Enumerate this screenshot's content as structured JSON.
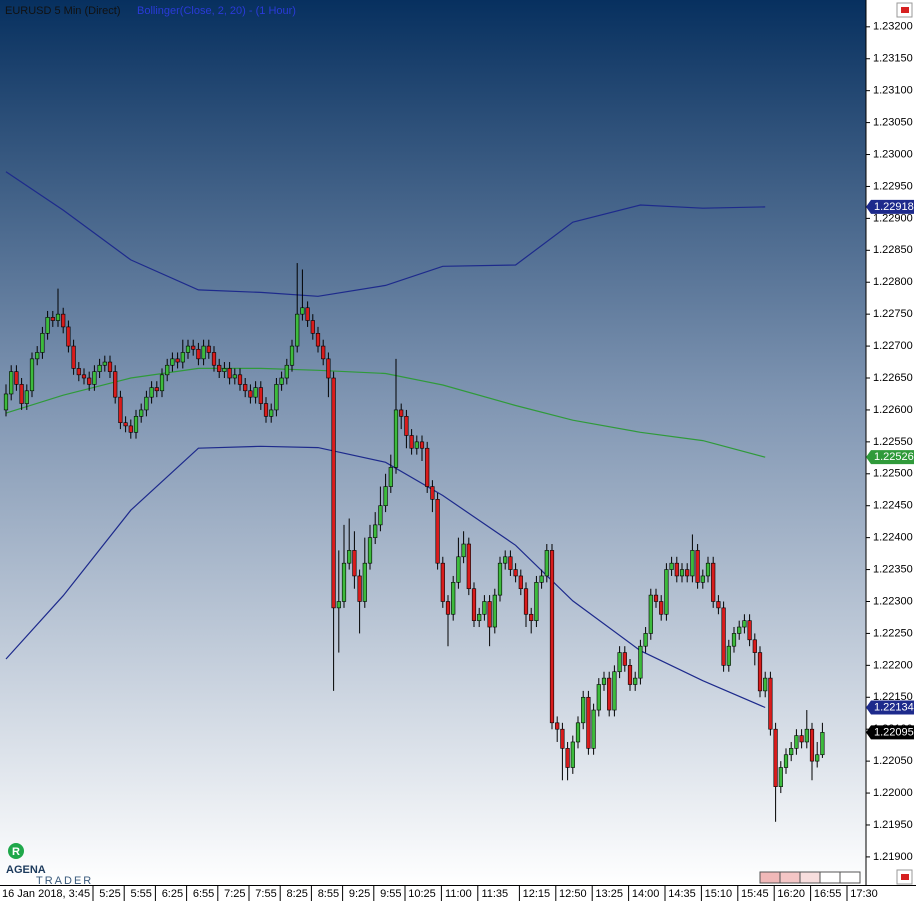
{
  "chart_data": {
    "type": "candlestick",
    "title": "EURUSD 5 Min (Direct)",
    "indicator": "Bollinger(Close, 2, 20) - (1 Hour)",
    "logo_badge": "R",
    "logo": "AGENA",
    "logo_sub": "TRADER",
    "up_color": "#3dbb3d",
    "down_color": "#d91c1c",
    "last_price_color": "#000000",
    "ylim": [
      1.21856,
      1.23242
    ],
    "yticks": [
      {
        "value": 1.232,
        "label": "1.23200"
      },
      {
        "value": 1.2315,
        "label": "1.23150"
      },
      {
        "value": 1.231,
        "label": "1.23100"
      },
      {
        "value": 1.2305,
        "label": "1.23050"
      },
      {
        "value": 1.23,
        "label": "1.23000"
      },
      {
        "value": 1.2295,
        "label": "1.22950"
      },
      {
        "value": 1.229,
        "label": "1.22900"
      },
      {
        "value": 1.2285,
        "label": "1.22850"
      },
      {
        "value": 1.228,
        "label": "1.22800"
      },
      {
        "value": 1.2275,
        "label": "1.22750"
      },
      {
        "value": 1.227,
        "label": "1.22700"
      },
      {
        "value": 1.2265,
        "label": "1.22650"
      },
      {
        "value": 1.226,
        "label": "1.22600"
      },
      {
        "value": 1.2255,
        "label": "1.22550"
      },
      {
        "value": 1.225,
        "label": "1.22500"
      },
      {
        "value": 1.2245,
        "label": "1.22450"
      },
      {
        "value": 1.224,
        "label": "1.22400"
      },
      {
        "value": 1.2235,
        "label": "1.22350"
      },
      {
        "value": 1.223,
        "label": "1.22300"
      },
      {
        "value": 1.2225,
        "label": "1.22250"
      },
      {
        "value": 1.222,
        "label": "1.22200"
      },
      {
        "value": 1.2215,
        "label": "1.22150"
      },
      {
        "value": 1.221,
        "label": "1.22100"
      },
      {
        "value": 1.2205,
        "label": "1.22050"
      },
      {
        "value": 1.22,
        "label": "1.22000"
      },
      {
        "value": 1.2195,
        "label": "1.21950"
      },
      {
        "value": 1.219,
        "label": "1.21900"
      }
    ],
    "xticks": [
      "16 Jan 2018, 3:45",
      "5:25",
      "5:55",
      "6:25",
      "6:55",
      "7:25",
      "7:55",
      "8:25",
      "8:55",
      "9:25",
      "9:55",
      "10:25",
      "11:00",
      "11:35",
      "12:15",
      "12:50",
      "13:25",
      "14:00",
      "14:35",
      "15:10",
      "15:45",
      "16:20",
      "16:55",
      "17:30"
    ],
    "candles": [
      [
        1.226,
        1.2264,
        1.2259,
        1.22625
      ],
      [
        1.22625,
        1.2267,
        1.22615,
        1.2266
      ],
      [
        1.2266,
        1.2267,
        1.2263,
        1.2264
      ],
      [
        1.2264,
        1.2265,
        1.226,
        1.2261
      ],
      [
        1.2261,
        1.2264,
        1.226,
        1.2263
      ],
      [
        1.2263,
        1.2269,
        1.2262,
        1.2268
      ],
      [
        1.2268,
        1.227,
        1.2267,
        1.2269
      ],
      [
        1.2269,
        1.2273,
        1.2268,
        1.2272
      ],
      [
        1.2272,
        1.22755,
        1.2271,
        1.22745
      ],
      [
        1.22745,
        1.22755,
        1.2273,
        1.2274
      ],
      [
        1.2274,
        1.2279,
        1.2273,
        1.2275
      ],
      [
        1.2275,
        1.2276,
        1.2272,
        1.2273
      ],
      [
        1.2273,
        1.2274,
        1.2269,
        1.227
      ],
      [
        1.227,
        1.2271,
        1.22655,
        1.22665
      ],
      [
        1.22665,
        1.22675,
        1.22645,
        1.22655
      ],
      [
        1.22655,
        1.22665,
        1.2264,
        1.2265
      ],
      [
        1.2265,
        1.2266,
        1.2263,
        1.2264
      ],
      [
        1.2264,
        1.2267,
        1.2263,
        1.2266
      ],
      [
        1.2266,
        1.2268,
        1.2265,
        1.2267
      ],
      [
        1.2267,
        1.22685,
        1.2266,
        1.22675
      ],
      [
        1.22675,
        1.22685,
        1.2265,
        1.2266
      ],
      [
        1.2266,
        1.2267,
        1.2261,
        1.2262
      ],
      [
        1.2262,
        1.2263,
        1.2257,
        1.2258
      ],
      [
        1.2258,
        1.2259,
        1.22565,
        1.22575
      ],
      [
        1.22575,
        1.22585,
        1.22555,
        1.22565
      ],
      [
        1.22565,
        1.226,
        1.22555,
        1.2259
      ],
      [
        1.2259,
        1.2261,
        1.2258,
        1.226
      ],
      [
        1.226,
        1.2263,
        1.2259,
        1.2262
      ],
      [
        1.2262,
        1.22645,
        1.2261,
        1.22635
      ],
      [
        1.22635,
        1.22645,
        1.2262,
        1.2263
      ],
      [
        1.2263,
        1.22665,
        1.2262,
        1.22655
      ],
      [
        1.22655,
        1.2268,
        1.22645,
        1.2267
      ],
      [
        1.2267,
        1.2269,
        1.2266,
        1.2268
      ],
      [
        1.2268,
        1.2269,
        1.22665,
        1.22675
      ],
      [
        1.22675,
        1.2271,
        1.22665,
        1.2269
      ],
      [
        1.2269,
        1.2271,
        1.2268,
        1.227
      ],
      [
        1.227,
        1.2271,
        1.22685,
        1.22695
      ],
      [
        1.22695,
        1.22705,
        1.2267,
        1.2268
      ],
      [
        1.2268,
        1.2271,
        1.2267,
        1.227
      ],
      [
        1.227,
        1.2271,
        1.2268,
        1.2269
      ],
      [
        1.2269,
        1.227,
        1.2266,
        1.2267
      ],
      [
        1.2267,
        1.2268,
        1.2265,
        1.2266
      ],
      [
        1.2266,
        1.22675,
        1.2265,
        1.22665
      ],
      [
        1.22665,
        1.22675,
        1.2264,
        1.2265
      ],
      [
        1.2265,
        1.22665,
        1.2264,
        1.22655
      ],
      [
        1.22655,
        1.22665,
        1.2263,
        1.2264
      ],
      [
        1.2264,
        1.2265,
        1.2262,
        1.2263
      ],
      [
        1.2263,
        1.2264,
        1.2261,
        1.2262
      ],
      [
        1.2262,
        1.22645,
        1.2261,
        1.22635
      ],
      [
        1.22635,
        1.22645,
        1.226,
        1.2261
      ],
      [
        1.2261,
        1.2262,
        1.2258,
        1.2259
      ],
      [
        1.2259,
        1.2261,
        1.2258,
        1.226
      ],
      [
        1.226,
        1.2265,
        1.2259,
        1.2264
      ],
      [
        1.2264,
        1.2266,
        1.2263,
        1.2265
      ],
      [
        1.2265,
        1.2268,
        1.2264,
        1.2267
      ],
      [
        1.2267,
        1.2271,
        1.2266,
        1.227
      ],
      [
        1.227,
        1.2283,
        1.2269,
        1.2275
      ],
      [
        1.2275,
        1.2282,
        1.2274,
        1.2276
      ],
      [
        1.2276,
        1.2277,
        1.2273,
        1.2274
      ],
      [
        1.2274,
        1.2275,
        1.2271,
        1.2272
      ],
      [
        1.2272,
        1.2273,
        1.2269,
        1.227
      ],
      [
        1.227,
        1.2271,
        1.2267,
        1.2268
      ],
      [
        1.2268,
        1.2269,
        1.2262,
        1.2265
      ],
      [
        1.2265,
        1.2266,
        1.2216,
        1.2229
      ],
      [
        1.2229,
        1.2238,
        1.2222,
        1.223
      ],
      [
        1.223,
        1.2242,
        1.2229,
        1.2236
      ],
      [
        1.2236,
        1.2243,
        1.2235,
        1.2238
      ],
      [
        1.2238,
        1.2241,
        1.2232,
        1.2234
      ],
      [
        1.2234,
        1.2235,
        1.2225,
        1.223
      ],
      [
        1.223,
        1.224,
        1.2229,
        1.2236
      ],
      [
        1.2236,
        1.2242,
        1.2235,
        1.224
      ],
      [
        1.224,
        1.2244,
        1.2239,
        1.2242
      ],
      [
        1.2242,
        1.2248,
        1.2241,
        1.2245
      ],
      [
        1.2245,
        1.225,
        1.2244,
        1.2248
      ],
      [
        1.2248,
        1.2253,
        1.2247,
        1.2251
      ],
      [
        1.2251,
        1.2268,
        1.225,
        1.226
      ],
      [
        1.226,
        1.2261,
        1.2257,
        1.2259
      ],
      [
        1.2259,
        1.226,
        1.2254,
        1.2256
      ],
      [
        1.2256,
        1.2257,
        1.2253,
        1.2254
      ],
      [
        1.2254,
        1.2256,
        1.2253,
        1.2255
      ],
      [
        1.2255,
        1.2256,
        1.2252,
        1.2254
      ],
      [
        1.2254,
        1.2255,
        1.2247,
        1.2248
      ],
      [
        1.2248,
        1.2249,
        1.2244,
        1.2246
      ],
      [
        1.2246,
        1.2247,
        1.2235,
        1.2236
      ],
      [
        1.2236,
        1.2237,
        1.2229,
        1.223
      ],
      [
        1.223,
        1.2231,
        1.2223,
        1.2228
      ],
      [
        1.2228,
        1.2234,
        1.2227,
        1.2233
      ],
      [
        1.2233,
        1.224,
        1.2232,
        1.2237
      ],
      [
        1.2237,
        1.2241,
        1.2236,
        1.2239
      ],
      [
        1.2239,
        1.224,
        1.2231,
        1.2232
      ],
      [
        1.2232,
        1.2233,
        1.2226,
        1.2227
      ],
      [
        1.2227,
        1.2229,
        1.2226,
        1.2228
      ],
      [
        1.2228,
        1.2231,
        1.2227,
        1.223
      ],
      [
        1.223,
        1.2231,
        1.2223,
        1.2226
      ],
      [
        1.2226,
        1.2232,
        1.2225,
        1.2231
      ],
      [
        1.2231,
        1.2237,
        1.223,
        1.2236
      ],
      [
        1.2236,
        1.2238,
        1.2235,
        1.2237
      ],
      [
        1.2237,
        1.2238,
        1.2234,
        1.2235
      ],
      [
        1.2235,
        1.2236,
        1.2233,
        1.2234
      ],
      [
        1.2234,
        1.2235,
        1.2231,
        1.2232
      ],
      [
        1.2232,
        1.2233,
        1.2226,
        1.2228
      ],
      [
        1.2228,
        1.2229,
        1.2225,
        1.2227
      ],
      [
        1.2227,
        1.2234,
        1.2226,
        1.2233
      ],
      [
        1.2233,
        1.2235,
        1.2232,
        1.2234
      ],
      [
        1.2234,
        1.2239,
        1.2233,
        1.2238
      ],
      [
        1.2238,
        1.2239,
        1.221,
        1.2211
      ],
      [
        1.2211,
        1.2212,
        1.2208,
        1.221
      ],
      [
        1.221,
        1.2211,
        1.2202,
        1.2207
      ],
      [
        1.2207,
        1.2208,
        1.2202,
        1.2204
      ],
      [
        1.2204,
        1.2209,
        1.2203,
        1.2208
      ],
      [
        1.2208,
        1.2212,
        1.2207,
        1.2211
      ],
      [
        1.2211,
        1.2216,
        1.221,
        1.2215
      ],
      [
        1.2215,
        1.2216,
        1.2206,
        1.2207
      ],
      [
        1.2207,
        1.2214,
        1.2206,
        1.2213
      ],
      [
        1.2213,
        1.2218,
        1.2212,
        1.2217
      ],
      [
        1.2217,
        1.2219,
        1.2216,
        1.2218
      ],
      [
        1.2218,
        1.2219,
        1.2212,
        1.2213
      ],
      [
        1.2213,
        1.222,
        1.2212,
        1.2219
      ],
      [
        1.2219,
        1.2223,
        1.2218,
        1.2222
      ],
      [
        1.2222,
        1.2223,
        1.2219,
        1.222
      ],
      [
        1.222,
        1.2221,
        1.2216,
        1.2217
      ],
      [
        1.2217,
        1.2219,
        1.2216,
        1.2218
      ],
      [
        1.2218,
        1.2224,
        1.2217,
        1.2223
      ],
      [
        1.2223,
        1.2226,
        1.2222,
        1.2225
      ],
      [
        1.2225,
        1.2232,
        1.2224,
        1.2231
      ],
      [
        1.2231,
        1.2232,
        1.2229,
        1.223
      ],
      [
        1.223,
        1.2231,
        1.2227,
        1.2228
      ],
      [
        1.2228,
        1.2236,
        1.2227,
        1.2235
      ],
      [
        1.2235,
        1.2237,
        1.2234,
        1.2236
      ],
      [
        1.2236,
        1.2237,
        1.2233,
        1.2234
      ],
      [
        1.2234,
        1.2236,
        1.2233,
        1.2235
      ],
      [
        1.2235,
        1.2236,
        1.2233,
        1.2234
      ],
      [
        1.2234,
        1.22405,
        1.2233,
        1.2238
      ],
      [
        1.2238,
        1.2239,
        1.2232,
        1.2233
      ],
      [
        1.2233,
        1.2235,
        1.2232,
        1.2234
      ],
      [
        1.2234,
        1.2237,
        1.2233,
        1.2236
      ],
      [
        1.2236,
        1.2237,
        1.2229,
        1.223
      ],
      [
        1.223,
        1.2231,
        1.2228,
        1.2229
      ],
      [
        1.2229,
        1.223,
        1.2219,
        1.222
      ],
      [
        1.222,
        1.2224,
        1.2219,
        1.2223
      ],
      [
        1.2223,
        1.2226,
        1.2222,
        1.2225
      ],
      [
        1.2225,
        1.2227,
        1.2224,
        1.2226
      ],
      [
        1.2226,
        1.2228,
        1.2225,
        1.2227
      ],
      [
        1.2227,
        1.2228,
        1.2223,
        1.2224
      ],
      [
        1.2224,
        1.2225,
        1.222,
        1.2222
      ],
      [
        1.2222,
        1.2223,
        1.2215,
        1.2216
      ],
      [
        1.2216,
        1.2219,
        1.2215,
        1.2218
      ],
      [
        1.2218,
        1.2219,
        1.2209,
        1.221
      ],
      [
        1.221,
        1.2211,
        1.21955,
        1.2201
      ],
      [
        1.2201,
        1.2205,
        1.22,
        1.2204
      ],
      [
        1.2204,
        1.2207,
        1.2203,
        1.2206
      ],
      [
        1.2206,
        1.2208,
        1.2205,
        1.2207
      ],
      [
        1.2207,
        1.221,
        1.2206,
        1.2209
      ],
      [
        1.2209,
        1.221,
        1.2207,
        1.2208
      ],
      [
        1.2208,
        1.2213,
        1.2207,
        1.221
      ],
      [
        1.221,
        1.2211,
        1.2202,
        1.2205
      ],
      [
        1.2205,
        1.2208,
        1.2204,
        1.2206
      ],
      [
        1.2206,
        1.2211,
        1.22055,
        1.22095
      ]
    ],
    "bands": [
      {
        "color": "#1d2a8c",
        "x": [
          0,
          11,
          24,
          37,
          49,
          60,
          73,
          84,
          98,
          109,
          122,
          134,
          146
        ],
        "values": [
          1.22973,
          1.22913,
          1.22835,
          1.22788,
          1.22784,
          1.22778,
          1.22795,
          1.22825,
          1.22827,
          1.22894,
          1.22921,
          1.22916,
          1.22918
        ]
      },
      {
        "color": "#2f9a3a",
        "x": [
          0,
          11,
          24,
          37,
          49,
          60,
          73,
          84,
          98,
          109,
          122,
          134,
          146
        ],
        "values": [
          1.22595,
          1.22623,
          1.2265,
          1.22665,
          1.22665,
          1.22662,
          1.22657,
          1.22639,
          1.22607,
          1.22584,
          1.22565,
          1.22552,
          1.22526
        ]
      },
      {
        "color": "#1d2a8c",
        "x": [
          0,
          11,
          24,
          37,
          49,
          60,
          73,
          84,
          98,
          109,
          122,
          134,
          146
        ],
        "values": [
          1.2221,
          1.22309,
          1.22443,
          1.2254,
          1.22543,
          1.22541,
          1.22518,
          1.22466,
          1.22388,
          1.22301,
          1.22223,
          1.22176,
          1.22134
        ]
      }
    ]
  }
}
